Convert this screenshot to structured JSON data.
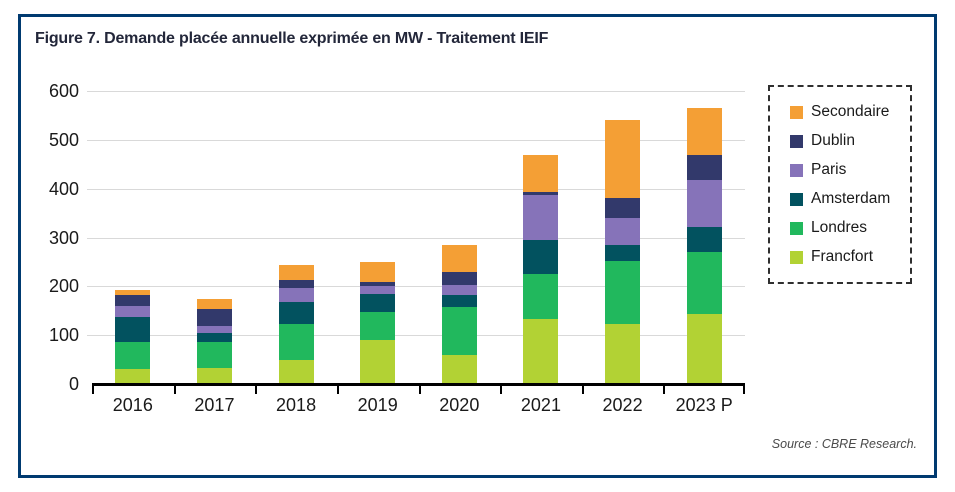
{
  "figure": {
    "title": "Figure 7. Demande placée annuelle exprimée en MW - Traitement IEIF",
    "source": "Source : CBRE Research."
  },
  "colors": {
    "frame_border": "#003A70",
    "gridline": "#D9D9D9",
    "axis": "#000000",
    "title_text": "#23273A",
    "source_text": "#4A4A4A",
    "secondaire": "#F49F35",
    "dublin": "#32396B",
    "paris": "#8673B9",
    "amsterdam": "#02525F",
    "londres": "#21B85D",
    "francfort": "#B2D234"
  },
  "legend": {
    "items": [
      {
        "label": "Secondaire",
        "color": "#F49F35"
      },
      {
        "label": "Dublin",
        "color": "#32396B"
      },
      {
        "label": "Paris",
        "color": "#8673B9"
      },
      {
        "label": "Amsterdam",
        "color": "#02525F"
      },
      {
        "label": "Londres",
        "color": "#21B85D"
      },
      {
        "label": "Francfort",
        "color": "#B2D234"
      }
    ]
  },
  "chart_data": {
    "type": "bar",
    "stacked": true,
    "unit": "MW",
    "title": "Figure 7. Demande placée annuelle exprimée en MW - Traitement IEIF",
    "xlabel": "",
    "ylabel": "",
    "ylim": [
      0,
      600
    ],
    "yticks": [
      0,
      100,
      200,
      300,
      400,
      500,
      600
    ],
    "grid": "horizontal",
    "legend_position": "right",
    "categories": [
      "2016",
      "2017",
      "2018",
      "2019",
      "2020",
      "2021",
      "2022",
      "2023 P"
    ],
    "series": [
      {
        "name": "Francfort",
        "color": "#B2D234",
        "values": [
          28,
          30,
          47,
          88,
          58,
          131,
          121,
          142
        ]
      },
      {
        "name": "Londres",
        "color": "#21B85D",
        "values": [
          57,
          54,
          74,
          58,
          97,
          92,
          128,
          126
        ]
      },
      {
        "name": "Amsterdam",
        "color": "#02525F",
        "values": [
          50,
          18,
          45,
          36,
          25,
          69,
          34,
          51
        ]
      },
      {
        "name": "Paris",
        "color": "#8673B9",
        "values": [
          22,
          15,
          28,
          17,
          20,
          93,
          54,
          97
        ]
      },
      {
        "name": "Dublin",
        "color": "#32396B",
        "values": [
          23,
          35,
          17,
          8,
          27,
          7,
          41,
          51
        ]
      },
      {
        "name": "Secondaire",
        "color": "#F49F35",
        "values": [
          11,
          20,
          30,
          40,
          55,
          76,
          161,
          96
        ]
      }
    ],
    "totals": [
      191,
      172,
      241,
      247,
      282,
      468,
      539,
      563
    ]
  }
}
